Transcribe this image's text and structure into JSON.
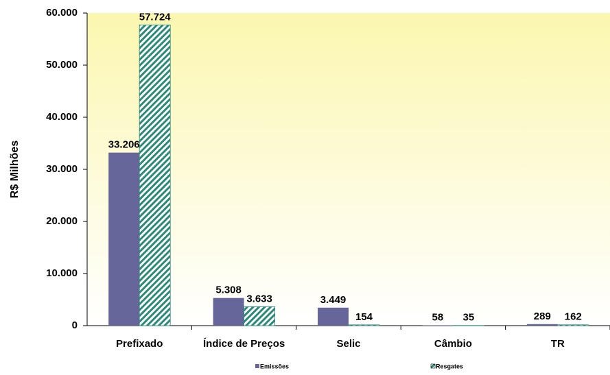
{
  "chart_data": {
    "type": "bar",
    "y_label": "R$ Milhões",
    "categories": [
      "Prefixado",
      "Índice de Preços",
      "Selic",
      "Câmbio",
      "TR"
    ],
    "series": [
      {
        "name": "Emissões",
        "color": "#66669a",
        "values": [
          33206,
          5308,
          3449,
          58,
          289
        ],
        "value_labels": [
          "33.206",
          "5.308",
          "3.449",
          "58",
          "289"
        ]
      },
      {
        "name": "Resgates",
        "color": "#2a8a78",
        "pattern": "hatch",
        "values": [
          57724,
          3633,
          154,
          35,
          162
        ],
        "value_labels": [
          "57.724",
          "3.633",
          "154",
          "35",
          "162"
        ]
      }
    ],
    "ylim": [
      0,
      60000
    ],
    "yticks": [
      0,
      {
        "value": 10000,
        "label": "10.000"
      },
      {
        "value": 20000,
        "label": "20.000"
      },
      {
        "value": 30000,
        "label": "30.000"
      },
      {
        "value": 40000,
        "label": "40.000"
      },
      {
        "value": 50000,
        "label": "50.000"
      },
      {
        "value": 60000,
        "label": "60.000"
      }
    ],
    "legend": "bottom"
  }
}
